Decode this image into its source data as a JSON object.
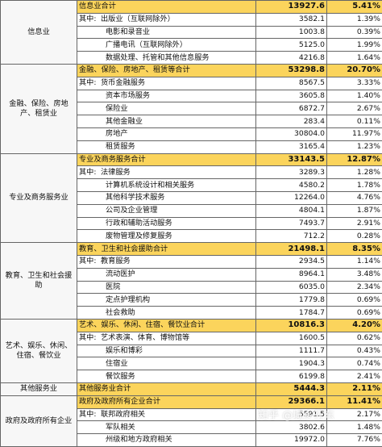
{
  "sections": [
    {
      "label": "信息业",
      "total": {
        "name": "信息业合计",
        "value": "13927.6",
        "pct": "5.41%"
      },
      "rows": [
        {
          "prefix": "其中:",
          "name": "出版业（互联网除外）",
          "value": "3582.1",
          "pct": "1.39%"
        },
        {
          "prefix": "",
          "name": "电影和录音业",
          "value": "1003.8",
          "pct": "0.39%"
        },
        {
          "prefix": "",
          "name": "广播电讯（互联网除外）",
          "value": "5125.0",
          "pct": "1.99%"
        },
        {
          "prefix": "",
          "name": "数据处理、托管和其他信息服务",
          "value": "4216.8",
          "pct": "1.64%"
        }
      ]
    },
    {
      "label": "金融、保险、房地产、租赁业",
      "total": {
        "name": "金融、保险、房地产、租赁等合计",
        "value": "53298.8",
        "pct": "20.70%"
      },
      "rows": [
        {
          "prefix": "其中:",
          "name": "货币金融服务",
          "value": "8567.5",
          "pct": "3.33%"
        },
        {
          "prefix": "",
          "name": "资本市场服务",
          "value": "3605.8",
          "pct": "1.40%"
        },
        {
          "prefix": "",
          "name": "保险业",
          "value": "6872.7",
          "pct": "2.67%"
        },
        {
          "prefix": "",
          "name": "其他金融业",
          "value": "283.4",
          "pct": "0.11%"
        },
        {
          "prefix": "",
          "name": "房地产",
          "value": "30804.0",
          "pct": "11.97%"
        },
        {
          "prefix": "",
          "name": "租赁服务",
          "value": "3165.4",
          "pct": "1.23%"
        }
      ]
    },
    {
      "label": "专业及商务服务业",
      "total": {
        "name": "专业及商务服务合计",
        "value": "33143.5",
        "pct": "12.87%"
      },
      "rows": [
        {
          "prefix": "其中:",
          "name": "法律服务",
          "value": "3289.3",
          "pct": "1.28%"
        },
        {
          "prefix": "",
          "name": "计算机系统设计和相关服务",
          "value": "4580.2",
          "pct": "1.78%"
        },
        {
          "prefix": "",
          "name": "其他科学技术服务",
          "value": "12264.0",
          "pct": "4.76%"
        },
        {
          "prefix": "",
          "name": "公司及企业管理",
          "value": "4804.1",
          "pct": "1.87%"
        },
        {
          "prefix": "",
          "name": "行政和辅助活动服务",
          "value": "7493.7",
          "pct": "2.91%"
        },
        {
          "prefix": "",
          "name": "废物管理及修复服务",
          "value": "712.2",
          "pct": "0.28%"
        }
      ]
    },
    {
      "label": "教育、卫生和社会援助",
      "total": {
        "name": "教育、卫生和社会援助合计",
        "value": "21498.1",
        "pct": "8.35%"
      },
      "rows": [
        {
          "prefix": "其中:",
          "name": "教育服务",
          "value": "2934.5",
          "pct": "1.14%"
        },
        {
          "prefix": "",
          "name": "流动医护",
          "value": "8964.1",
          "pct": "3.48%"
        },
        {
          "prefix": "",
          "name": "医院",
          "value": "6035.0",
          "pct": "2.34%"
        },
        {
          "prefix": "",
          "name": "定点护理机构",
          "value": "1779.8",
          "pct": "0.69%"
        },
        {
          "prefix": "",
          "name": "社会救助",
          "value": "1784.7",
          "pct": "0.69%"
        }
      ]
    },
    {
      "label": "艺术、娱乐、休闲、住宿、餐饮业",
      "total": {
        "name": "艺术、娱乐、休闲、住宿、餐饮业合计",
        "value": "10816.3",
        "pct": "4.20%"
      },
      "rows": [
        {
          "prefix": "其中:",
          "name": "艺术表演、体育、博物馆等",
          "value": "1600.5",
          "pct": "0.62%"
        },
        {
          "prefix": "",
          "name": "娱乐和博彩",
          "value": "1111.7",
          "pct": "0.43%"
        },
        {
          "prefix": "",
          "name": "住宿业",
          "value": "1904.3",
          "pct": "0.74%"
        },
        {
          "prefix": "",
          "name": "餐饮服务",
          "value": "6199.8",
          "pct": "2.41%"
        }
      ]
    },
    {
      "label": "其他服务业",
      "total": {
        "name": "其他服务业合计",
        "value": "5444.3",
        "pct": "2.11%"
      },
      "rows": []
    },
    {
      "label": "政府及政府所有企业",
      "total": {
        "name": "政府及政府所有企业合计",
        "value": "29366.1",
        "pct": "11.41%"
      },
      "rows": [
        {
          "prefix": "其中:",
          "name": "联邦政府相关",
          "value": "5591.5",
          "pct": "2.17%"
        },
        {
          "prefix": "",
          "name": "军队相关",
          "value": "3802.6",
          "pct": "1.48%"
        },
        {
          "prefix": "",
          "name": "州级和地方政府相关",
          "value": "19972.0",
          "pct": "7.76%"
        }
      ]
    }
  ],
  "watermark": "知乎 @城乡行东"
}
